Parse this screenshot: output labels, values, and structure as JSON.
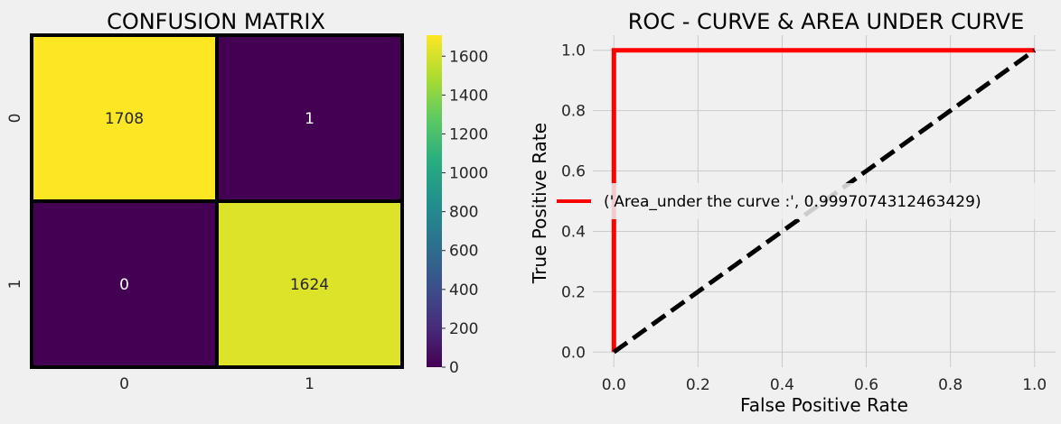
{
  "figure": {
    "background": "#f0f0f0"
  },
  "chart_data": [
    {
      "type": "heatmap",
      "title": "CONFUSION MATRIX",
      "xlabel": "",
      "ylabel": "",
      "x_categories": [
        "0",
        "1"
      ],
      "y_categories": [
        "0",
        "1"
      ],
      "values": [
        [
          1708,
          1
        ],
        [
          0,
          1624
        ]
      ],
      "cell_labels": [
        [
          "1708",
          "1"
        ],
        [
          "0",
          "1624"
        ]
      ],
      "colormap": "viridis",
      "colorbar": {
        "range": [
          0,
          1708
        ],
        "ticks": [
          0,
          200,
          400,
          600,
          800,
          1000,
          1200,
          1400,
          1600
        ],
        "tick_labels": [
          "0",
          "200",
          "400",
          "600",
          "800",
          "1000",
          "1200",
          "1400",
          "1600"
        ]
      },
      "cell_border_color": "#000000"
    },
    {
      "type": "line",
      "title": "ROC - CURVE & AREA UNDER CURVE",
      "xlabel": "False Positive Rate",
      "ylabel": "True Positive Rate",
      "xlim": [
        -0.05,
        1.05
      ],
      "ylim": [
        -0.05,
        1.05
      ],
      "x_ticks": [
        0.0,
        0.2,
        0.4,
        0.6,
        0.8,
        1.0
      ],
      "x_tick_labels": [
        "0.0",
        "0.2",
        "0.4",
        "0.6",
        "0.8",
        "1.0"
      ],
      "y_ticks": [
        0.0,
        0.2,
        0.4,
        0.6,
        0.8,
        1.0
      ],
      "y_tick_labels": [
        "0.0",
        "0.2",
        "0.4",
        "0.6",
        "0.8",
        "1.0"
      ],
      "grid": true,
      "legend_position": "center-left",
      "series": [
        {
          "name": "('Area_under the curve :', 0.9997074312463429)",
          "color": "#ff0000",
          "style": "solid",
          "x": [
            0.0,
            0.0,
            1.0
          ],
          "y": [
            0.0,
            1.0,
            1.0
          ]
        },
        {
          "color": "#000000",
          "style": "dashed",
          "x": [
            0.0,
            1.0
          ],
          "y": [
            0.0,
            1.0
          ]
        }
      ]
    }
  ]
}
